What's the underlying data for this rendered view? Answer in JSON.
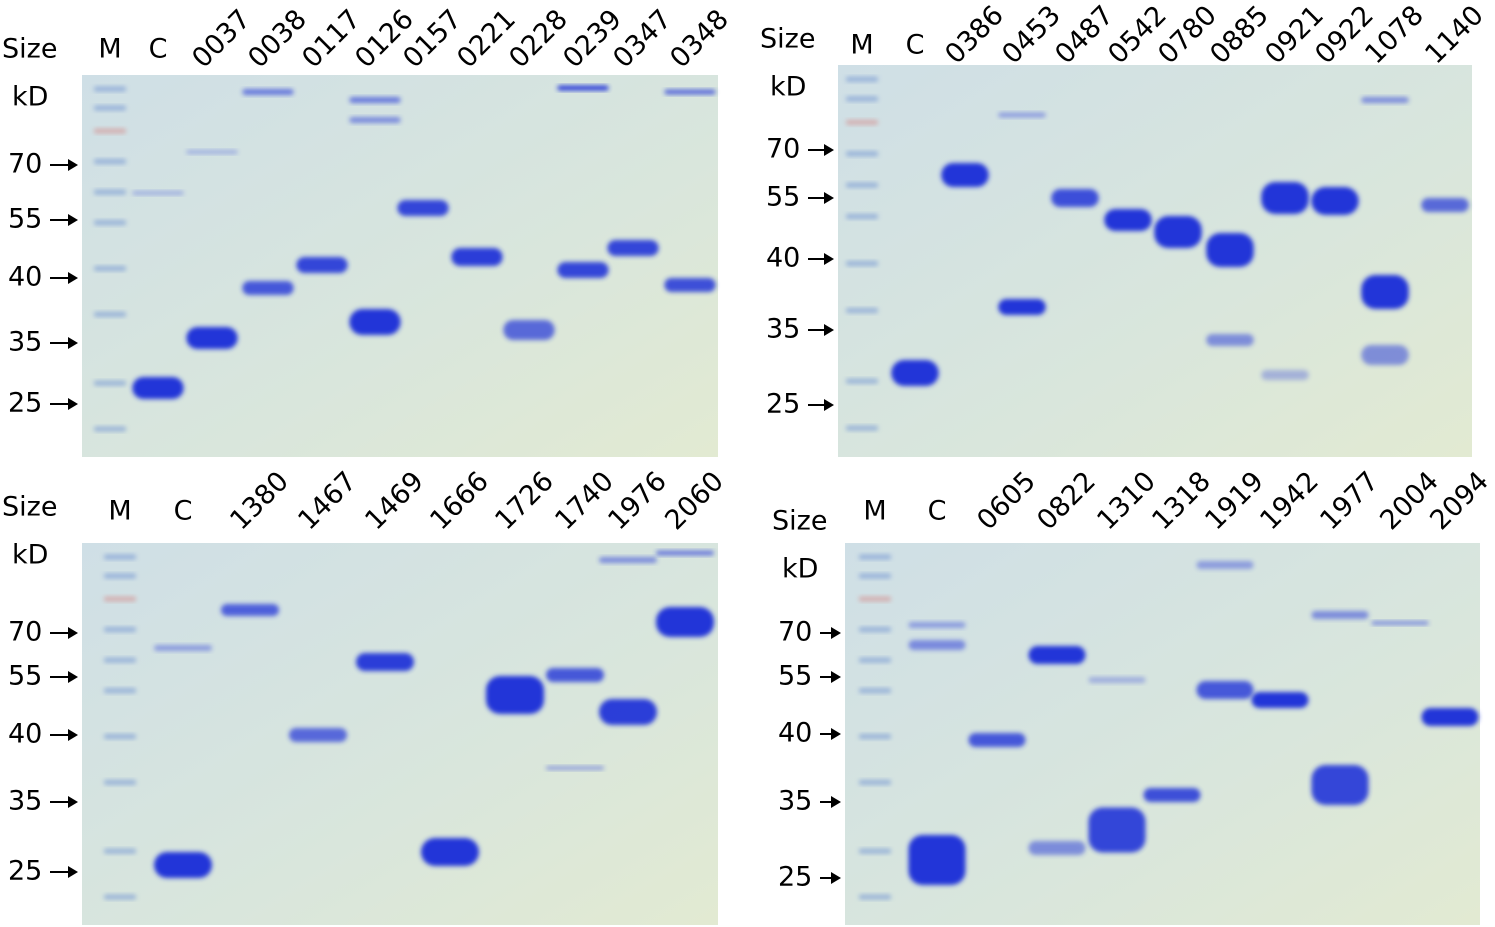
{
  "panels": [
    {
      "size_label": "Size",
      "unit_label": "kD",
      "lanes": [
        "M",
        "C",
        "0037",
        "0038",
        "0117",
        "0126",
        "0157",
        "0221",
        "0228",
        "0239",
        "0347",
        "0348"
      ],
      "markers": [
        "70",
        "55",
        "40",
        "35",
        "25"
      ]
    },
    {
      "size_label": "Size",
      "unit_label": "kD",
      "lanes": [
        "M",
        "C",
        "0386",
        "0453",
        "0487",
        "0542",
        "0780",
        "0885",
        "0921",
        "0922",
        "1078",
        "1140"
      ],
      "markers": [
        "70",
        "55",
        "40",
        "35",
        "25"
      ]
    },
    {
      "size_label": "Size",
      "unit_label": "kD",
      "lanes": [
        "M",
        "C",
        "1380",
        "1467",
        "1469",
        "1666",
        "1726",
        "1740",
        "1976",
        "2060"
      ],
      "markers": [
        "70",
        "55",
        "40",
        "35",
        "25"
      ]
    },
    {
      "size_label": "Size",
      "unit_label": "kD",
      "lanes": [
        "M",
        "C",
        "0605",
        "0822",
        "1310",
        "1318",
        "1919",
        "1942",
        "1977",
        "2004",
        "2094"
      ],
      "markers": [
        "70",
        "55",
        "40",
        "35",
        "25"
      ]
    }
  ]
}
